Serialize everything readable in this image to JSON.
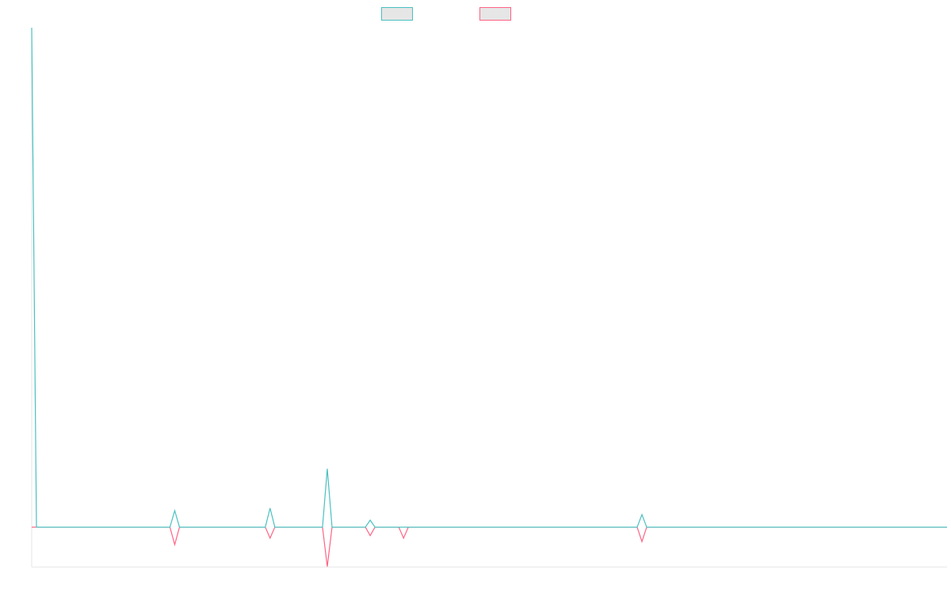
{
  "chart_data": {
    "type": "line",
    "x": [
      0,
      1,
      29,
      30,
      31,
      49,
      50,
      51,
      61,
      62,
      63,
      70,
      71,
      72,
      77,
      78,
      79,
      127,
      128,
      129,
      192
    ],
    "xlim": [
      0,
      192
    ],
    "ylim": [
      -8,
      100
    ],
    "series": [
      {
        "color": "#4bc0c0",
        "values": [
          100,
          0,
          0,
          3.3,
          0,
          0,
          3.8,
          0,
          0,
          11.7,
          0,
          0,
          1.4,
          0,
          0,
          0,
          0,
          0,
          2.5,
          0,
          0
        ]
      },
      {
        "color": "#ff6384",
        "values": [
          0,
          0,
          0,
          -3.5,
          0,
          0,
          -2.2,
          0,
          0,
          -7.9,
          0,
          0,
          -1.7,
          0,
          0,
          -2.2,
          0,
          0,
          -2.9,
          0,
          0
        ]
      }
    ]
  }
}
